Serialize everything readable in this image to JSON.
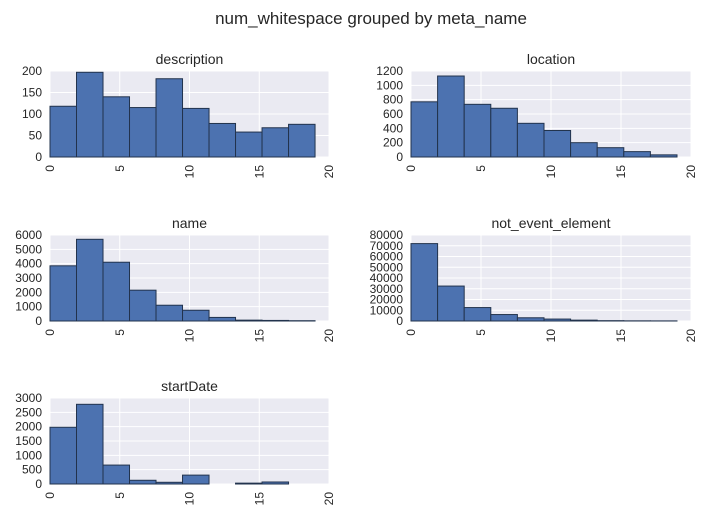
{
  "chart_data": {
    "title": "num_whitespace grouped by meta_name",
    "type": "bar",
    "style": {
      "bg": "#eaeaf2",
      "grid": "#ffffff",
      "bar": "#4c72b0",
      "edge": "#22334d",
      "text": "#262626"
    },
    "panels": [
      {
        "type": "bar",
        "title": "description",
        "bin_edges": [
          0,
          1.9,
          3.8,
          5.7,
          7.6,
          9.5,
          11.4,
          13.3,
          15.2,
          17.1,
          19.0
        ],
        "values": [
          118,
          197,
          140,
          115,
          182,
          113,
          78,
          58,
          68,
          76
        ],
        "xlim": [
          0,
          20
        ],
        "ylim": [
          0,
          200
        ],
        "xticks": [
          "0",
          "5",
          "10",
          "15",
          "20"
        ],
        "yticks": [
          "0",
          "50",
          "100",
          "150",
          "200"
        ]
      },
      {
        "type": "bar",
        "title": "location",
        "bin_edges": [
          0,
          1.9,
          3.8,
          5.7,
          7.6,
          9.5,
          11.4,
          13.3,
          15.2,
          17.1,
          19.0
        ],
        "values": [
          770,
          1130,
          735,
          680,
          470,
          370,
          200,
          130,
          75,
          30
        ],
        "xlim": [
          0,
          20
        ],
        "ylim": [
          0,
          1200
        ],
        "xticks": [
          "0",
          "5",
          "10",
          "15",
          "20"
        ],
        "yticks": [
          "0",
          "200",
          "400",
          "600",
          "800",
          "1000",
          "1200"
        ]
      },
      {
        "type": "bar",
        "title": "name",
        "bin_edges": [
          0,
          1.9,
          3.8,
          5.7,
          7.6,
          9.5,
          11.4,
          13.3,
          15.2,
          17.1,
          19.0
        ],
        "values": [
          3850,
          5700,
          4100,
          2150,
          1100,
          750,
          250,
          60,
          40,
          20
        ],
        "xlim": [
          0,
          20
        ],
        "ylim": [
          0,
          6000
        ],
        "xticks": [
          "0",
          "5",
          "10",
          "15",
          "20"
        ],
        "yticks": [
          "0",
          "1000",
          "2000",
          "3000",
          "4000",
          "5000",
          "6000"
        ]
      },
      {
        "type": "bar",
        "title": "not_event_element",
        "bin_edges": [
          0,
          1.9,
          3.8,
          5.7,
          7.6,
          9.5,
          11.4,
          13.3,
          15.2,
          17.1,
          19.0
        ],
        "values": [
          72000,
          32500,
          12500,
          6000,
          3000,
          1800,
          800,
          300,
          150,
          100
        ],
        "xlim": [
          0,
          20
        ],
        "ylim": [
          0,
          80000
        ],
        "xticks": [
          "0",
          "5",
          "10",
          "15",
          "20"
        ],
        "yticks": [
          "0",
          "10000",
          "20000",
          "30000",
          "40000",
          "50000",
          "60000",
          "70000",
          "80000"
        ]
      },
      {
        "type": "bar",
        "title": "startDate",
        "bin_edges": [
          0,
          1.9,
          3.8,
          5.7,
          7.6,
          9.5,
          11.4,
          13.3,
          15.2,
          17.1,
          19.0
        ],
        "values": [
          1980,
          2780,
          660,
          130,
          60,
          310,
          0,
          30,
          70,
          0
        ],
        "xlim": [
          0,
          20
        ],
        "ylim": [
          0,
          3000
        ],
        "xticks": [
          "0",
          "5",
          "10",
          "15",
          "20"
        ],
        "yticks": [
          "0",
          "500",
          "1000",
          "1500",
          "2000",
          "2500",
          "3000"
        ]
      }
    ]
  }
}
